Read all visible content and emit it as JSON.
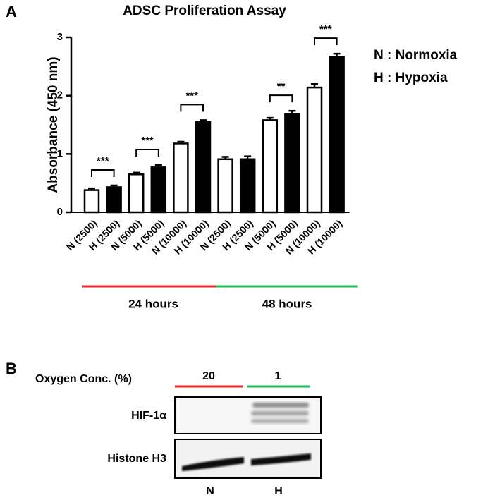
{
  "chart_data": {
    "type": "bar",
    "panel_label": "A",
    "title": "ADSC Proliferation Assay",
    "y_label": "Absorbance (450 nm)",
    "categories": [
      "N (2500)",
      "H (2500)",
      "N (5000)",
      "H (5000)",
      "N (10000)",
      "H (10000)",
      "N (2500)",
      "H (2500)",
      "N (5000)",
      "H (5000)",
      "N (10000)",
      "H (10000)"
    ],
    "values": [
      0.38,
      0.43,
      0.65,
      0.77,
      1.18,
      1.55,
      0.91,
      0.91,
      1.58,
      1.69,
      2.14,
      2.67
    ],
    "errors": [
      0.03,
      0.03,
      0.03,
      0.04,
      0.03,
      0.03,
      0.04,
      0.05,
      0.04,
      0.05,
      0.06,
      0.05
    ],
    "colors": [
      "#ffffff",
      "#000000",
      "#ffffff",
      "#000000",
      "#ffffff",
      "#000000",
      "#ffffff",
      "#000000",
      "#ffffff",
      "#000000",
      "#ffffff",
      "#000000"
    ],
    "significance": [
      "***",
      "***",
      "***",
      null,
      "**",
      "***"
    ],
    "groups": [
      {
        "label": "24 hours",
        "color": "#e8262a"
      },
      {
        "label": "48 hours",
        "color": "#1db954"
      }
    ],
    "legend": [
      "N  : Normoxia",
      "H  : Hypoxia"
    ],
    "ylim": [
      0,
      3
    ],
    "yticks": [
      0,
      1,
      2,
      3
    ]
  },
  "blot": {
    "panel_label": "B",
    "condition_label": "Oxygen Conc. (%)",
    "conditions": [
      {
        "label": "20",
        "color": "#e8262a"
      },
      {
        "label": "1",
        "color": "#1db954"
      }
    ],
    "rows": [
      "HIF-1α",
      "Histone H3"
    ],
    "lanes": [
      "N",
      "H"
    ]
  }
}
